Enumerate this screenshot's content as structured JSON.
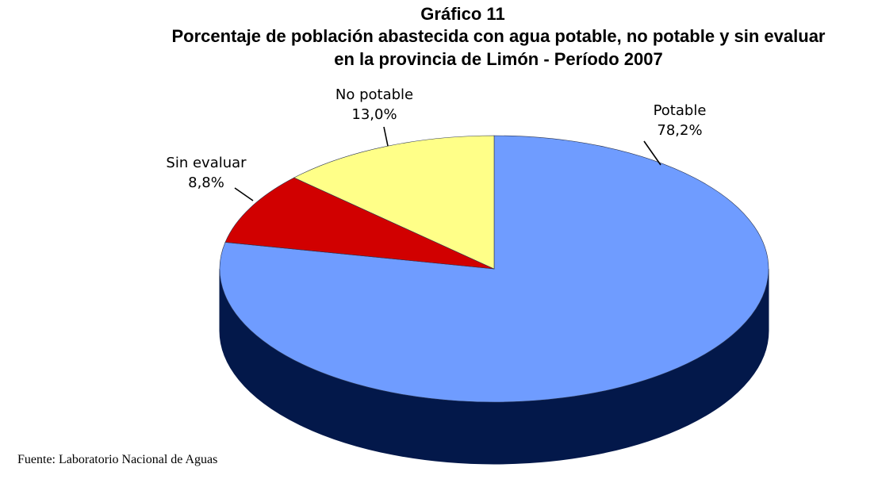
{
  "chart_data": {
    "type": "pie",
    "title": "Gráfico 11",
    "subtitle_lines": [
      "Porcentaje de población abastecida con agua potable, no potable y sin evaluar",
      "en la provincia de Limón - Período 2007"
    ],
    "slices": [
      {
        "name": "Potable",
        "value": 78.2,
        "label": "78,2%",
        "color": "#6f9cff",
        "side_color": "#03184a"
      },
      {
        "name": "Sin evaluar",
        "value": 8.8,
        "label": "8,8%",
        "color": "#d10000",
        "side_color": "#6b0000"
      },
      {
        "name": "No potable",
        "value": 13.0,
        "label": "13,0%",
        "color": "#ffff88",
        "side_color": "#8a8a30"
      }
    ],
    "three_d": true,
    "legend": "none"
  },
  "source": "Fuente: Laboratorio Nacional de Aguas"
}
